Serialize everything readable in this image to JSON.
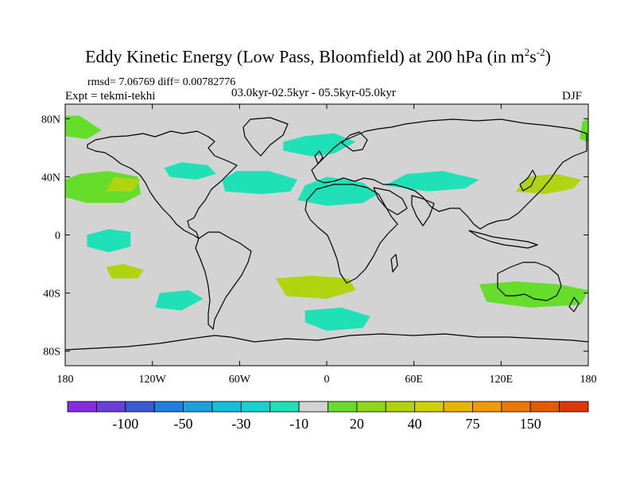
{
  "title_main": "Eddy Kinetic Energy (Low Pass, Bloomfield) at 200 hPa (in m",
  "title_sup1": "2",
  "title_mid": "s",
  "title_sup2": "-2",
  "title_close": ")",
  "stats_line": "rmsd= 7.06769 diff= 0.00782776",
  "experiment": "Expt = tekmi-tekhi",
  "period": "03.0kyr-02.5kyr - 05.5kyr-05.0kyr",
  "season": "DJF",
  "chart_data": {
    "type": "heatmap",
    "title": "Eddy Kinetic Energy (Low Pass, Bloomfield) at 200 hPa (in m^2 s^-2)",
    "projection": "cylindrical-equidistant",
    "xlim": [
      -180,
      180
    ],
    "ylim": [
      -90,
      90
    ],
    "x_ticks": [
      {
        "value": -180,
        "label": "180"
      },
      {
        "value": -120,
        "label": "120W"
      },
      {
        "value": -60,
        "label": "60W"
      },
      {
        "value": 0,
        "label": "0"
      },
      {
        "value": 60,
        "label": "60E"
      },
      {
        "value": 120,
        "label": "120E"
      },
      {
        "value": 180,
        "label": "180"
      }
    ],
    "y_ticks": [
      {
        "value": 80,
        "label": "80N"
      },
      {
        "value": 40,
        "label": "40N"
      },
      {
        "value": 0,
        "label": "0"
      },
      {
        "value": -40,
        "label": "40S"
      },
      {
        "value": -80,
        "label": "80S"
      }
    ],
    "background_color": "#d3d3d3",
    "colorbar": {
      "colors": [
        "#8a2be2",
        "#6a3fdc",
        "#3c5ad6",
        "#1e7fe0",
        "#1aa0df",
        "#14bfdc",
        "#18d2d2",
        "#20e0b8",
        "#d3d3d3",
        "#66dd2a",
        "#8ed81c",
        "#b0d510",
        "#cfcf0a",
        "#e8b400",
        "#ee9a00",
        "#ec7800",
        "#e45a00",
        "#dc3800"
      ],
      "labeled_ticks": [
        {
          "index": 2,
          "label": "-100"
        },
        {
          "index": 4,
          "label": "-50"
        },
        {
          "index": 6,
          "label": "-30"
        },
        {
          "index": 8,
          "label": "-10"
        },
        {
          "index": 10,
          "label": "20"
        },
        {
          "index": 12,
          "label": "40"
        },
        {
          "index": 14,
          "label": "75"
        },
        {
          "index": 16,
          "label": "150"
        }
      ]
    },
    "anomaly_regions": [
      {
        "name": "north-pacific-positive",
        "lon": -150,
        "lat": 32,
        "value": 20
      },
      {
        "name": "north-pacific-core",
        "lon": -140,
        "lat": 34,
        "value": 40
      },
      {
        "name": "north-america-negative",
        "lon": -95,
        "lat": 43,
        "value": -10
      },
      {
        "name": "north-atlantic-negative",
        "lon": -50,
        "lat": 38,
        "value": -10
      },
      {
        "name": "north-africa-negative",
        "lon": 5,
        "lat": 30,
        "value": -10
      },
      {
        "name": "greenland-negative",
        "lon": -10,
        "lat": 62,
        "value": -10
      },
      {
        "name": "asia-negative",
        "lon": 65,
        "lat": 38,
        "value": -10
      },
      {
        "name": "japan-positive",
        "lon": 145,
        "lat": 36,
        "value": 40
      },
      {
        "name": "arctic-positive-west",
        "lon": -170,
        "lat": 75,
        "value": 20
      },
      {
        "name": "arctic-positive-east",
        "lon": 178,
        "lat": 72,
        "value": 20
      },
      {
        "name": "equatorial-pacific-negative",
        "lon": -150,
        "lat": -5,
        "value": -10
      },
      {
        "name": "south-pacific-positive",
        "lon": -140,
        "lat": -25,
        "value": 40
      },
      {
        "name": "south-atlantic-positive",
        "lon": -10,
        "lat": -37,
        "value": 40
      },
      {
        "name": "southeast-pacific-negative",
        "lon": -100,
        "lat": -47,
        "value": -10
      },
      {
        "name": "southern-ocean-negative",
        "lon": 5,
        "lat": -60,
        "value": -10
      },
      {
        "name": "australia-positive",
        "lon": 140,
        "lat": -42,
        "value": 20
      }
    ]
  }
}
